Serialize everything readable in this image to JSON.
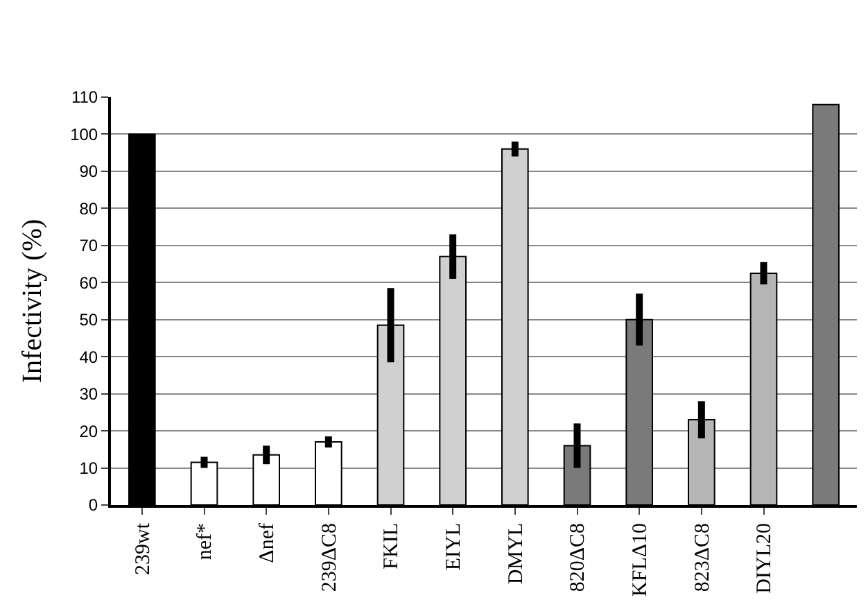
{
  "chart_data": {
    "type": "bar",
    "ylabel": "Infectivity (%)",
    "categories": [
      "239wt",
      "nef*",
      "Δnef",
      "239ΔC8",
      "FKIL",
      "EIYL",
      "DMYL",
      "820ΔC8",
      "KFLΔ10",
      "823ΔC8",
      "DIYL20",
      null
    ],
    "values": [
      100,
      11.5,
      13.5,
      17,
      48.5,
      67,
      96,
      16,
      50,
      23,
      62.5,
      108
    ],
    "errors": [
      null,
      1.5,
      2.5,
      1.5,
      10,
      6,
      2,
      6,
      7,
      5,
      3,
      null
    ],
    "colors": [
      "#000000",
      "#ffffff",
      "#ffffff",
      "#ffffff",
      "#d0d0d0",
      "#d0d0d0",
      "#d0d0d0",
      "#7a7a7a",
      "#7a7a7a",
      "#b5b5b5",
      "#b5b5b5",
      "#7a7a7a"
    ],
    "ylim": [
      0,
      110
    ],
    "yticks": [
      0,
      10,
      20,
      30,
      40,
      50,
      60,
      70,
      80,
      90,
      100,
      110
    ],
    "grid": "y",
    "legend": false
  }
}
